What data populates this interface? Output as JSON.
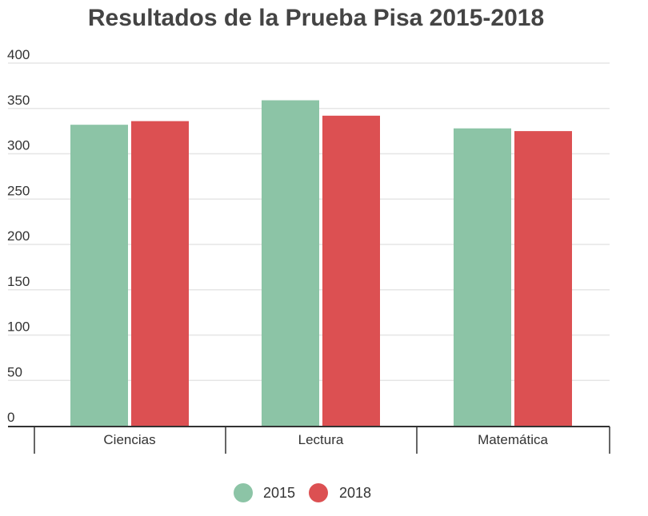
{
  "chart_data": {
    "type": "bar",
    "title": "Resultados de la Prueba Pisa  2015-2018",
    "categories": [
      "Ciencias",
      "Lectura",
      "Matemática"
    ],
    "series": [
      {
        "name": "2015",
        "values": [
          332,
          359,
          328
        ],
        "color": "#8cc4a6"
      },
      {
        "name": "2018",
        "values": [
          336,
          342,
          325
        ],
        "color": "#dc5052"
      }
    ],
    "ylim": [
      0,
      400
    ],
    "yticks": [
      0,
      50,
      100,
      150,
      200,
      250,
      300,
      350,
      400
    ],
    "grid": true,
    "legend_position": "bottom",
    "xlabel": "",
    "ylabel": ""
  }
}
